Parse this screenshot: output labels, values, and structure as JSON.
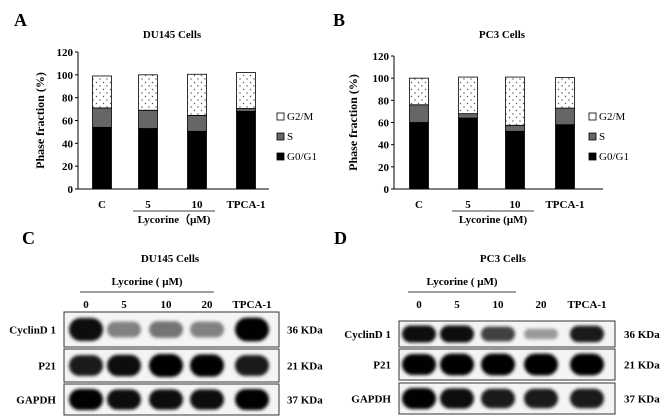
{
  "panels": {
    "A": "A",
    "B": "B",
    "C": "C",
    "D": "D"
  },
  "chart_data": [
    {
      "type": "bar",
      "stacked": true,
      "title": "DU145 Cells",
      "ylabel": "Phase fraction (%)",
      "ylim": [
        0,
        120
      ],
      "yticks": [
        "0",
        "20",
        "40",
        "60",
        "80",
        "100",
        "120"
      ],
      "categories": [
        "C",
        "5",
        "10",
        "TPCA-1"
      ],
      "group_label": "Lycorine（μM)",
      "legend_position": "right",
      "series": [
        {
          "name": "G0/G1",
          "color": "#000000",
          "values": [
            54,
            53,
            50.5,
            68
          ]
        },
        {
          "name": "S",
          "color": "#666666",
          "values": [
            17,
            16,
            14,
            2.5
          ]
        },
        {
          "name": "G2/M",
          "color": "#ffffff",
          "pattern": "dotted",
          "values": [
            28,
            31,
            36,
            31.5
          ]
        }
      ]
    },
    {
      "type": "bar",
      "stacked": true,
      "title": "PC3 Cells",
      "ylabel": "Phase fraction (%)",
      "ylim": [
        0,
        120
      ],
      "yticks": [
        "0",
        "20",
        "40",
        "60",
        "80",
        "100",
        "120"
      ],
      "categories": [
        "C",
        "5",
        "10",
        "TPCA-1"
      ],
      "group_label": "Lycorine (μM)",
      "legend_position": "right",
      "series": [
        {
          "name": "G0/G1",
          "color": "#000000",
          "values": [
            60,
            64,
            52,
            58
          ]
        },
        {
          "name": "S",
          "color": "#666666",
          "values": [
            16,
            4,
            5.5,
            15
          ]
        },
        {
          "name": "G2/M",
          "color": "#ffffff",
          "pattern": "dotted",
          "values": [
            24,
            33,
            43.5,
            27.5
          ]
        }
      ]
    }
  ],
  "blots": [
    {
      "title": "DU145 Cells",
      "group_label": "Lycorine ( μM)",
      "lanes": [
        "0",
        "5",
        "10",
        "20",
        "TPCA-1"
      ],
      "rows": [
        {
          "protein": "CyclinD 1",
          "size": "36 KDa",
          "intensity": [
            0.9,
            0.45,
            0.5,
            0.45,
            0.95
          ]
        },
        {
          "protein": "P21",
          "size": "21 KDa",
          "intensity": [
            0.85,
            0.9,
            1.0,
            0.95,
            0.85
          ]
        },
        {
          "protein": "GAPDH",
          "size": "37 KDa",
          "intensity": [
            0.95,
            0.9,
            0.9,
            0.9,
            0.95
          ]
        }
      ]
    },
    {
      "title": "PC3 Cells",
      "group_label": "Lycorine ( μM)",
      "lanes": [
        "0",
        "5",
        "10",
        "20",
        "TPCA-1"
      ],
      "rows": [
        {
          "protein": "CyclinD 1",
          "size": "36 KDa",
          "intensity": [
            0.9,
            0.9,
            0.7,
            0.35,
            0.85
          ]
        },
        {
          "protein": "P21",
          "size": "21 KDa",
          "intensity": [
            0.95,
            1.0,
            1.0,
            1.0,
            1.0
          ]
        },
        {
          "protein": "GAPDH",
          "size": "37 KDa",
          "intensity": [
            0.95,
            0.9,
            0.85,
            0.85,
            0.85
          ]
        }
      ]
    }
  ]
}
